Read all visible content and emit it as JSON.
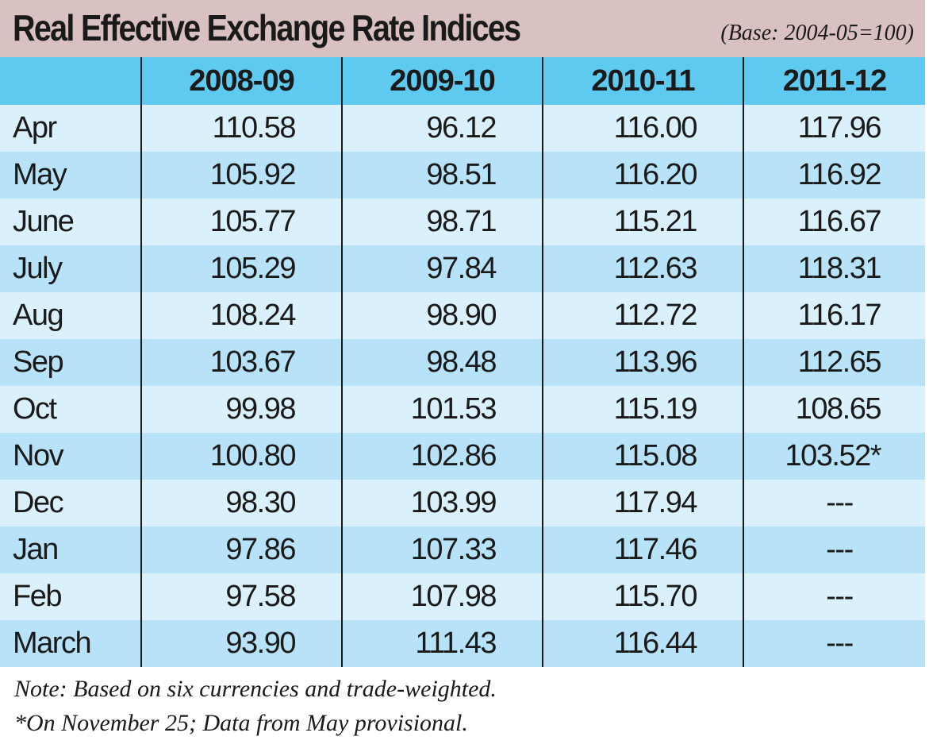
{
  "header": {
    "title": "Real Effective Exchange Rate Indices",
    "subtitle": "(Base: 2004-05=100)"
  },
  "table": {
    "columns": [
      "",
      "2008-09",
      "2009-10",
      "2010-11",
      "2011-12"
    ],
    "rows": [
      {
        "month": "Apr",
        "values": [
          "110.58",
          "96.12",
          "116.00",
          "117.96"
        ]
      },
      {
        "month": "May",
        "values": [
          "105.92",
          "98.51",
          "116.20",
          "116.92"
        ]
      },
      {
        "month": "June",
        "values": [
          "105.77",
          "98.71",
          "115.21",
          "116.67"
        ]
      },
      {
        "month": "July",
        "values": [
          "105.29",
          "97.84",
          "112.63",
          "118.31"
        ]
      },
      {
        "month": "Aug",
        "values": [
          "108.24",
          "98.90",
          "112.72",
          "116.17"
        ]
      },
      {
        "month": "Sep",
        "values": [
          "103.67",
          "98.48",
          "113.96",
          "112.65"
        ]
      },
      {
        "month": "Oct",
        "values": [
          "99.98",
          "101.53",
          "115.19",
          "108.65"
        ]
      },
      {
        "month": "Nov",
        "values": [
          "100.80",
          "102.86",
          "115.08",
          "103.52*"
        ]
      },
      {
        "month": "Dec",
        "values": [
          "98.30",
          "103.99",
          "117.94",
          "---"
        ]
      },
      {
        "month": "Jan",
        "values": [
          "97.86",
          "107.33",
          "117.46",
          "---"
        ]
      },
      {
        "month": "Feb",
        "values": [
          "97.58",
          "107.98",
          "115.70",
          "---"
        ]
      },
      {
        "month": "March",
        "values": [
          "93.90",
          "111.43",
          "116.44",
          "---"
        ]
      }
    ]
  },
  "notes": [
    "Note: Based on six currencies and trade-weighted.",
    "*On November 25; Data from May provisional."
  ],
  "colors": {
    "title_band": "#d9c0c1",
    "header_row": "#5fcaf0",
    "row_dark": "#b8e2f7",
    "row_light": "#daf0fb",
    "divider": "#1a1a1a"
  },
  "chart_data": {
    "type": "table",
    "title": "Real Effective Exchange Rate Indices",
    "subtitle": "(Base: 2004-05=100)",
    "columns": [
      "2008-09",
      "2009-10",
      "2010-11",
      "2011-12"
    ],
    "row_labels": [
      "Apr",
      "May",
      "June",
      "July",
      "Aug",
      "Sep",
      "Oct",
      "Nov",
      "Dec",
      "Jan",
      "Feb",
      "March"
    ],
    "cells": [
      [
        110.58,
        96.12,
        116.0,
        117.96
      ],
      [
        105.92,
        98.51,
        116.2,
        116.92
      ],
      [
        105.77,
        98.71,
        115.21,
        116.67
      ],
      [
        105.29,
        97.84,
        112.63,
        118.31
      ],
      [
        108.24,
        98.9,
        112.72,
        116.17
      ],
      [
        103.67,
        98.48,
        113.96,
        112.65
      ],
      [
        99.98,
        101.53,
        115.19,
        108.65
      ],
      [
        100.8,
        102.86,
        115.08,
        103.52
      ],
      [
        98.3,
        103.99,
        117.94,
        null
      ],
      [
        97.86,
        107.33,
        117.46,
        null
      ],
      [
        97.58,
        107.98,
        115.7,
        null
      ],
      [
        93.9,
        111.43,
        116.44,
        null
      ]
    ]
  }
}
